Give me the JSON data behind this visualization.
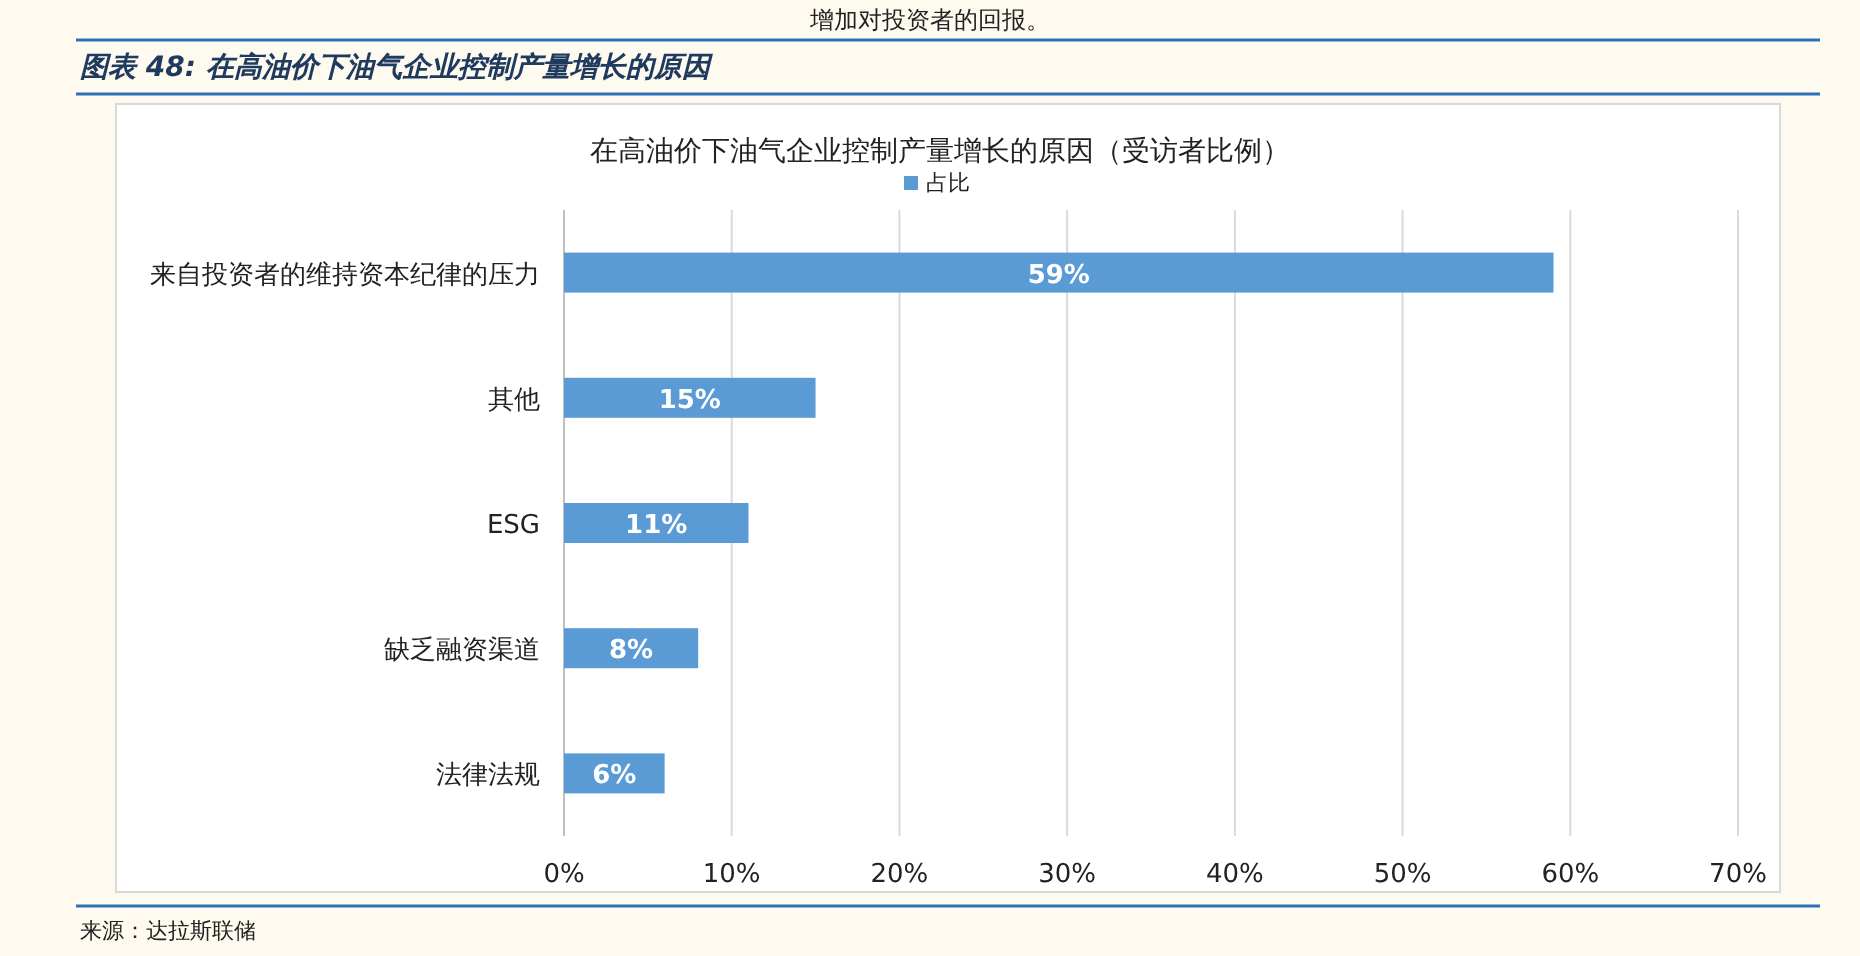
{
  "chart_data": {
    "type": "bar",
    "orientation": "horizontal",
    "title": "在高油价下油气企业控制产量增长的原因（受访者比例）",
    "subtitle": "图表 48: 在高油价下油气企业控制产量增长的原因",
    "categories": [
      "来自投资者的维持资本纪律的压力",
      "其他",
      "ESG",
      "缺乏融资渠道",
      "法律法规"
    ],
    "series": [
      {
        "name": "占比",
        "color": "#5b9bd5",
        "values": [
          59,
          15,
          11,
          8,
          6
        ],
        "value_labels": [
          "59%",
          "15%",
          "11%",
          "8%",
          "6%"
        ]
      }
    ],
    "xlim": [
      0,
      70
    ],
    "xticks": [
      {
        "value": 0,
        "label": "0%"
      },
      {
        "value": 10,
        "label": "10%"
      },
      {
        "value": 20,
        "label": "20%"
      },
      {
        "value": 30,
        "label": "30%"
      },
      {
        "value": 40,
        "label": "40%"
      },
      {
        "value": 50,
        "label": "50%"
      },
      {
        "value": 60,
        "label": "60%"
      },
      {
        "value": 70,
        "label": "70%"
      }
    ],
    "grid": "x",
    "legend": "top",
    "annotations": [
      "增加对投资者的回报。",
      "来源：达拉斯联储"
    ]
  }
}
